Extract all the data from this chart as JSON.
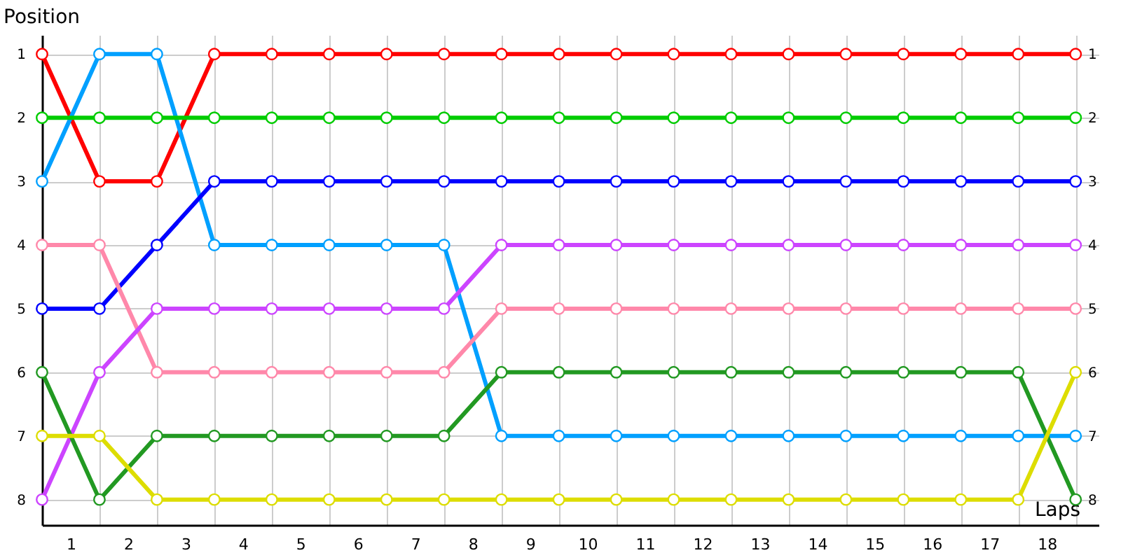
{
  "chart_data": {
    "type": "line",
    "xlabel": "Laps",
    "ylabel": "Position",
    "x": [
      0,
      1,
      2,
      3,
      4,
      5,
      6,
      7,
      8,
      9,
      10,
      11,
      12,
      13,
      14,
      15,
      16,
      17,
      18
    ],
    "xlim": [
      0,
      18.4
    ],
    "xticks": [
      {
        "value": 0.5,
        "label": "1"
      },
      {
        "value": 1.5,
        "label": "2"
      },
      {
        "value": 2.5,
        "label": "3"
      },
      {
        "value": 3.5,
        "label": "4"
      },
      {
        "value": 4.5,
        "label": "5"
      },
      {
        "value": 5.5,
        "label": "6"
      },
      {
        "value": 6.5,
        "label": "7"
      },
      {
        "value": 7.5,
        "label": "8"
      },
      {
        "value": 8.5,
        "label": "9"
      },
      {
        "value": 9.5,
        "label": "10"
      },
      {
        "value": 10.5,
        "label": "11"
      },
      {
        "value": 11.5,
        "label": "12"
      },
      {
        "value": 12.5,
        "label": "13"
      },
      {
        "value": 13.5,
        "label": "14"
      },
      {
        "value": 14.5,
        "label": "15"
      },
      {
        "value": 15.5,
        "label": "16"
      },
      {
        "value": 16.5,
        "label": "17"
      },
      {
        "value": 17.5,
        "label": "18"
      }
    ],
    "ylim": [
      8.4,
      0.7
    ],
    "yticks": [
      1,
      2,
      3,
      4,
      5,
      6,
      7,
      8
    ],
    "y2lim": [
      8.4,
      0.7
    ],
    "y2ticks": [
      1,
      2,
      3,
      4,
      5,
      6,
      7,
      8
    ],
    "grid": true,
    "marker": "circle",
    "line_style": "solid",
    "series": [
      {
        "color": "#ff0000",
        "values": [
          1,
          3,
          3,
          1,
          1,
          1,
          1,
          1,
          1,
          1,
          1,
          1,
          1,
          1,
          1,
          1,
          1,
          1,
          1
        ]
      },
      {
        "color": "#00a0ff",
        "values": [
          3,
          1,
          1,
          4,
          4,
          4,
          4,
          4,
          7,
          7,
          7,
          7,
          7,
          7,
          7,
          7,
          7,
          7,
          7
        ]
      },
      {
        "color": "#00cc00",
        "values": [
          2,
          2,
          2,
          2,
          2,
          2,
          2,
          2,
          2,
          2,
          2,
          2,
          2,
          2,
          2,
          2,
          2,
          2,
          2
        ]
      },
      {
        "color": "#0000ff",
        "values": [
          5,
          5,
          4,
          3,
          3,
          3,
          3,
          3,
          3,
          3,
          3,
          3,
          3,
          3,
          3,
          3,
          3,
          3,
          3
        ]
      },
      {
        "color": "#ff88aa",
        "values": [
          4,
          4,
          6,
          6,
          6,
          6,
          6,
          6,
          5,
          5,
          5,
          5,
          5,
          5,
          5,
          5,
          5,
          5,
          5
        ]
      },
      {
        "color": "#cc44ff",
        "values": [
          8,
          6,
          5,
          5,
          5,
          5,
          5,
          5,
          4,
          4,
          4,
          4,
          4,
          4,
          4,
          4,
          4,
          4,
          4
        ]
      },
      {
        "color": "#229922",
        "values": [
          6,
          8,
          7,
          7,
          7,
          7,
          7,
          7,
          6,
          6,
          6,
          6,
          6,
          6,
          6,
          6,
          6,
          6,
          8
        ]
      },
      {
        "color": "#dddd00",
        "values": [
          7,
          7,
          8,
          8,
          8,
          8,
          8,
          8,
          8,
          8,
          8,
          8,
          8,
          8,
          8,
          8,
          8,
          8,
          6
        ]
      }
    ]
  }
}
